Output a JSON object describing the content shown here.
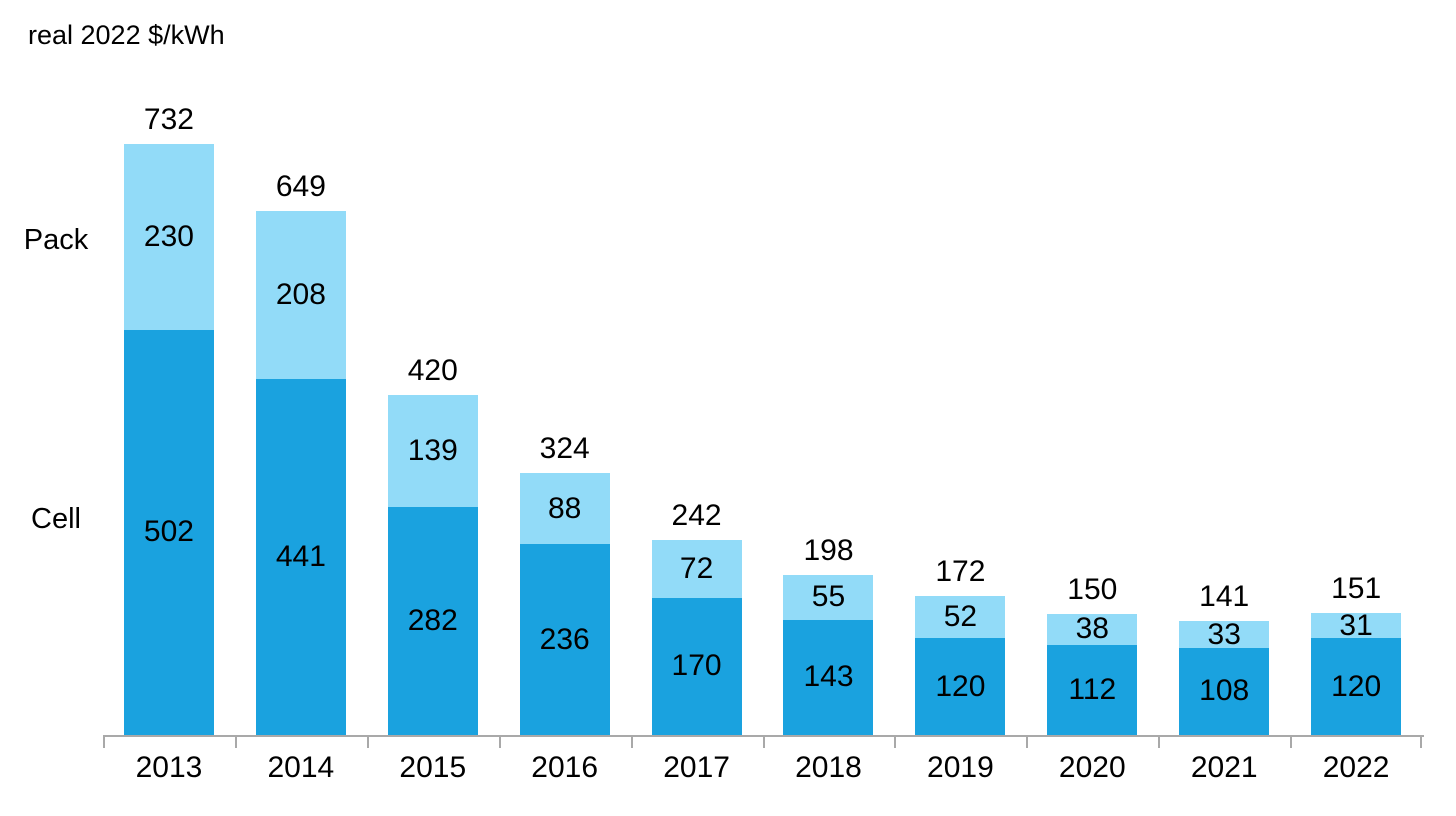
{
  "chart": {
    "title": "real 2022 $/kWh",
    "series_labels": {
      "pack": "Pack",
      "cell": "Cell"
    }
  },
  "chart_data": {
    "type": "bar",
    "stacked": true,
    "title": "real 2022 $/kWh",
    "xlabel": "",
    "ylabel": "real 2022 $/kWh",
    "categories": [
      "2013",
      "2014",
      "2015",
      "2016",
      "2017",
      "2018",
      "2019",
      "2020",
      "2021",
      "2022"
    ],
    "series": [
      {
        "name": "Cell",
        "color": "#1aa2df",
        "values": [
          502,
          441,
          282,
          236,
          170,
          143,
          120,
          112,
          108,
          120
        ]
      },
      {
        "name": "Pack",
        "color": "#92dbf8",
        "values": [
          230,
          208,
          139,
          88,
          72,
          55,
          52,
          38,
          33,
          31
        ]
      }
    ],
    "totals": [
      732,
      649,
      420,
      324,
      242,
      198,
      172,
      150,
      141,
      151
    ],
    "axis_color": "#a9a9a9",
    "grid": false,
    "legend_position": "left",
    "value_labels": "inside-segments-and-total-above"
  }
}
